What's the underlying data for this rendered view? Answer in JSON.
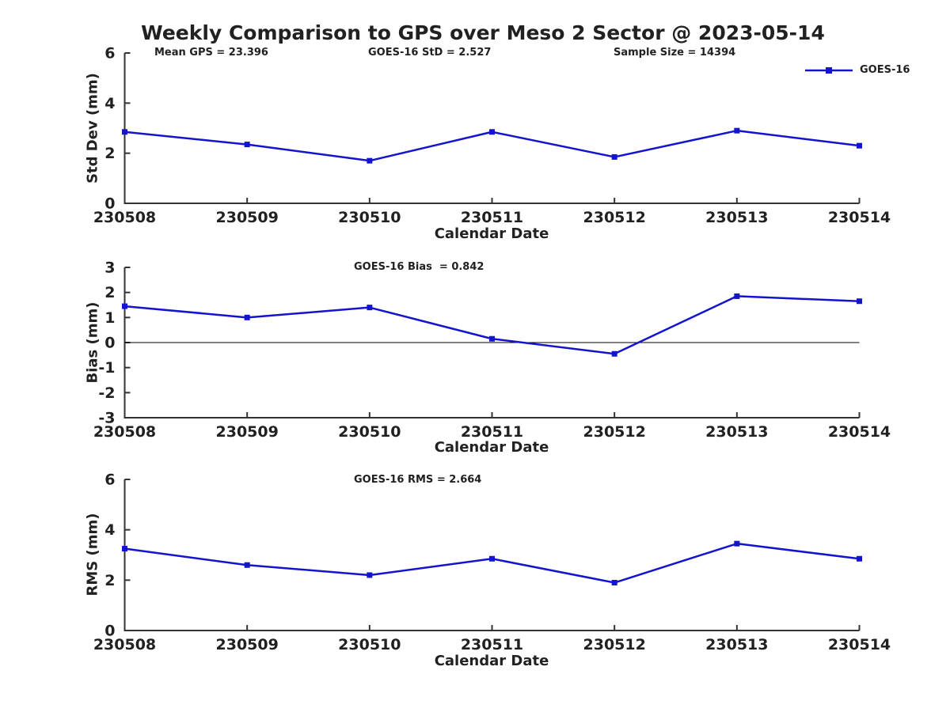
{
  "page": {
    "title": "Weekly Comparison to GPS over Meso 2 Sector @ 2023-05-14"
  },
  "legend": {
    "label": "GOES-16",
    "position": "top-right"
  },
  "colors": {
    "series": "#1414cf",
    "axis": "#333333",
    "text": "#212121",
    "zero_line": "#000000",
    "background": "#ffffff"
  },
  "chart_data": [
    {
      "type": "line",
      "title": "",
      "annotations": [
        "Mean GPS = 23.396",
        "GOES-16 StD = 2.527",
        "Sample Size = 14394"
      ],
      "xlabel": "Calendar Date",
      "ylabel": "Std Dev (mm)",
      "categories": [
        "230508",
        "230509",
        "230510",
        "230511",
        "230512",
        "230513",
        "230514"
      ],
      "series": [
        {
          "name": "GOES-16",
          "values": [
            2.85,
            2.35,
            1.7,
            2.85,
            1.85,
            2.9,
            2.3
          ]
        }
      ],
      "ylim": [
        0,
        6
      ],
      "yticks": [
        0,
        2,
        4,
        6
      ],
      "grid": false,
      "zero_line": false,
      "legend_position": "top-right"
    },
    {
      "type": "line",
      "title": "GOES-16 Bias  = 0.842",
      "xlabel": "Calendar Date",
      "ylabel": "Bias (mm)",
      "categories": [
        "230508",
        "230509",
        "230510",
        "230511",
        "230512",
        "230513",
        "230514"
      ],
      "series": [
        {
          "name": "GOES-16",
          "values": [
            1.45,
            1.0,
            1.4,
            0.15,
            -0.45,
            1.85,
            1.65
          ]
        }
      ],
      "ylim": [
        -3,
        3
      ],
      "yticks": [
        -3,
        -2,
        -1,
        0,
        1,
        2,
        3
      ],
      "grid": false,
      "zero_line": true
    },
    {
      "type": "line",
      "title": "GOES-16 RMS = 2.664",
      "xlabel": "Calendar Date",
      "ylabel": "RMS (mm)",
      "categories": [
        "230508",
        "230509",
        "230510",
        "230511",
        "230512",
        "230513",
        "230514"
      ],
      "series": [
        {
          "name": "GOES-16",
          "values": [
            3.25,
            2.6,
            2.2,
            2.85,
            1.9,
            3.45,
            2.85
          ]
        }
      ],
      "ylim": [
        0,
        6
      ],
      "yticks": [
        0,
        2,
        4,
        6
      ],
      "grid": false,
      "zero_line": false
    }
  ]
}
